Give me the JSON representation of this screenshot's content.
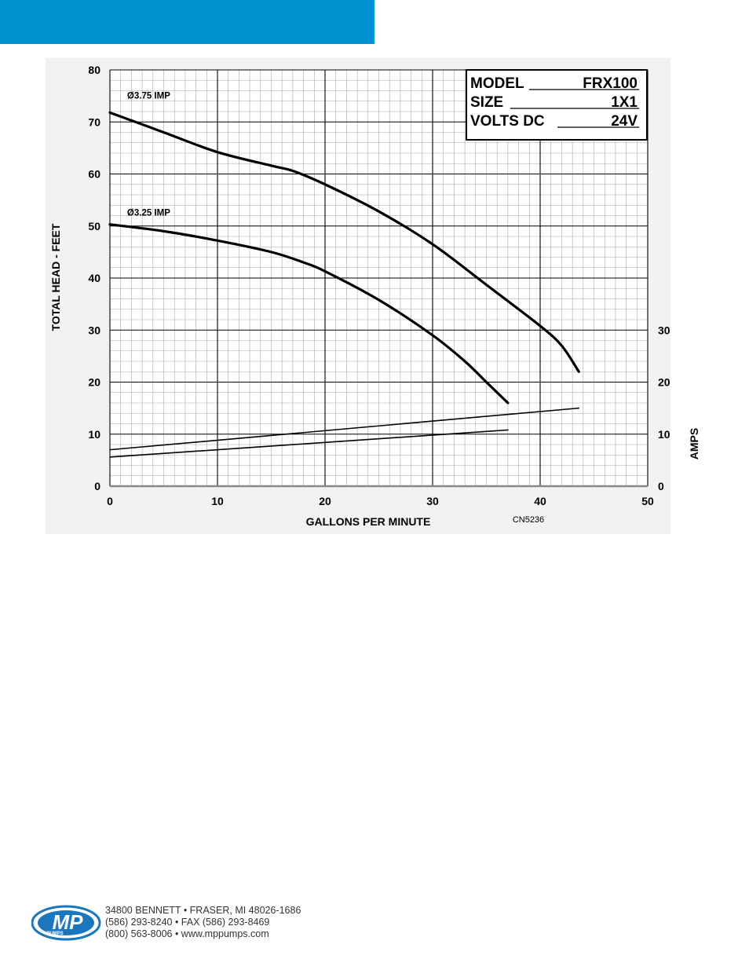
{
  "header": {
    "color": "#0091d0"
  },
  "chart_data": {
    "type": "line",
    "title": "",
    "xlabel": "GALLONS PER MINUTE",
    "ylabel": "TOTAL HEAD - FEET",
    "y2label": "AMPS",
    "xlim": [
      0,
      50
    ],
    "ylim": [
      0,
      80
    ],
    "y2lim": [
      0,
      80
    ],
    "x_ticks": [
      0,
      10,
      20,
      30,
      40,
      50
    ],
    "y_ticks": [
      0,
      10,
      20,
      30,
      40,
      50,
      60,
      70,
      80
    ],
    "y2_ticks": [
      0,
      10,
      20,
      30
    ],
    "grid": true,
    "chart_code": "CN5236",
    "spec_box": {
      "model_label": "MODEL",
      "model_value": "FRX100",
      "size_label": "SIZE",
      "size_value": "1X1",
      "volts_label": "VOLTS DC",
      "volts_value": "24V"
    },
    "series": [
      {
        "name": "Ø3.75 IMP",
        "axis": "head",
        "x": [
          0,
          5,
          10,
          15,
          17,
          20,
          25,
          30,
          35,
          40,
          42,
          43.6
        ],
        "y": [
          71.8,
          68.0,
          64.2,
          61.6,
          60.6,
          58.0,
          52.8,
          46.5,
          38.7,
          30.8,
          27.0,
          22.0
        ]
      },
      {
        "name": "Ø3.25 IMP",
        "axis": "head",
        "x": [
          0,
          5,
          10,
          15,
          18,
          20,
          25,
          30,
          33,
          35,
          37
        ],
        "y": [
          50.3,
          49.0,
          47.2,
          45.0,
          43.0,
          41.3,
          35.8,
          29.0,
          24.0,
          20.0,
          16.0
        ]
      },
      {
        "name": "",
        "axis": "amps",
        "x": [
          0,
          43.6
        ],
        "y": [
          7.0,
          15.0
        ]
      },
      {
        "name": "",
        "axis": "amps",
        "x": [
          0,
          37
        ],
        "y": [
          5.6,
          10.8
        ]
      }
    ],
    "annotations": [
      {
        "text": "Ø3.75 IMP",
        "x": 1.6,
        "y": 74.5
      },
      {
        "text": "Ø3.25 IMP",
        "x": 1.6,
        "y": 52.0
      }
    ]
  },
  "footer": {
    "logo_text": "MP",
    "logo_subtext": "PUMPS",
    "address_line1": "34800 BENNETT • FRASER, MI 48026-1686",
    "address_line2": "(586) 293-8240 • FAX (586) 293-8469",
    "address_line3": "(800) 563-8006 • www.mppumps.com",
    "logo_color": "#1a76bd"
  }
}
